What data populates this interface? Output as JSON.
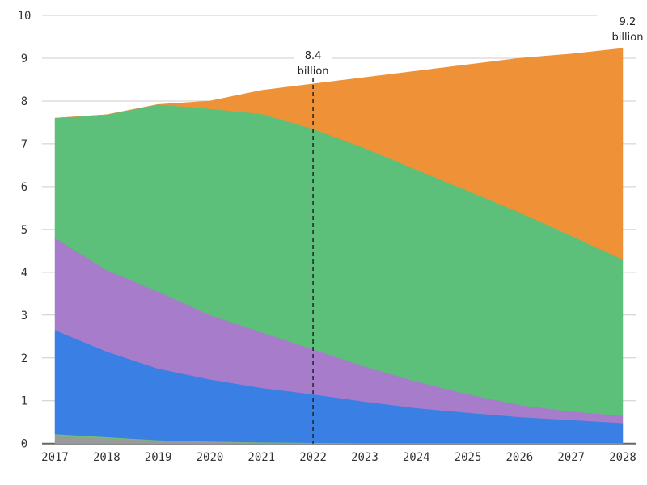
{
  "chart_data": {
    "type": "area",
    "stacked": true,
    "x": [
      2017,
      2018,
      2019,
      2020,
      2021,
      2022,
      2023,
      2024,
      2025,
      2026,
      2027,
      2028
    ],
    "ylim": [
      0,
      10
    ],
    "yticks": [
      0,
      1,
      2,
      3,
      4,
      5,
      6,
      7,
      8,
      9,
      10
    ],
    "grid": true,
    "series": [
      {
        "color": "#9a9a9a",
        "values": [
          0.17,
          0.12,
          0.07,
          0.04,
          0.02,
          0.01,
          0,
          0,
          0,
          0,
          0,
          0
        ]
      },
      {
        "color": "#6fbf73",
        "values": [
          0.05,
          0.03,
          0.01,
          0.01,
          0.01,
          0.01,
          0.01,
          0.01,
          0.01,
          0.01,
          0.01,
          0.01
        ]
      },
      {
        "color": "#3a7fe3",
        "values": [
          2.43,
          2.0,
          1.67,
          1.45,
          1.27,
          1.13,
          0.97,
          0.82,
          0.71,
          0.61,
          0.54,
          0.47
        ]
      },
      {
        "color": "#a77ccb",
        "values": [
          2.15,
          1.9,
          1.8,
          1.5,
          1.3,
          1.05,
          0.82,
          0.62,
          0.43,
          0.28,
          0.2,
          0.17
        ]
      },
      {
        "color": "#5cbf7a",
        "values": [
          2.8,
          3.63,
          4.37,
          4.82,
          5.1,
          5.15,
          5.1,
          4.95,
          4.75,
          4.5,
          4.1,
          3.65
        ]
      },
      {
        "color": "#ef9137",
        "values": [
          0,
          0,
          0,
          0.18,
          0.55,
          1.05,
          1.65,
          2.3,
          2.95,
          3.6,
          4.25,
          4.93
        ]
      }
    ],
    "annotations": [
      {
        "x": 2022,
        "value": "8.4",
        "unit": "billion",
        "dashed_line": true
      },
      {
        "x": 2028,
        "value": "9.2",
        "unit": "billion"
      }
    ]
  }
}
